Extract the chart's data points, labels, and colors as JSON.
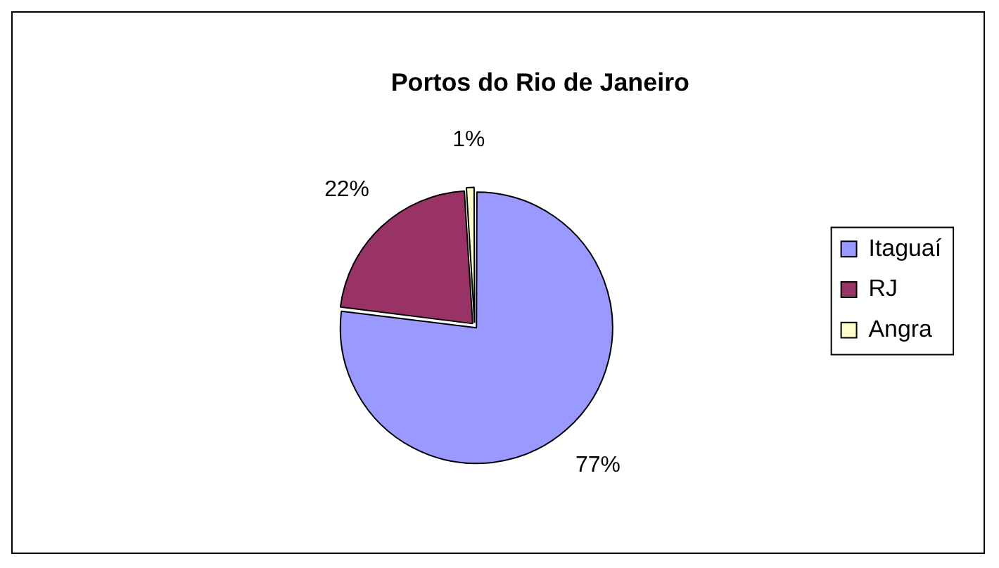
{
  "chart_data": {
    "type": "pie",
    "title": "Portos do Rio de Janeiro",
    "categories": [
      "Itaguaí",
      "RJ",
      "Angra"
    ],
    "values": [
      77,
      22,
      1
    ],
    "colors": [
      "#9999ff",
      "#993366",
      "#ffffcc"
    ],
    "value_labels": [
      "77%",
      "22%",
      "1%"
    ],
    "legend": "right"
  }
}
